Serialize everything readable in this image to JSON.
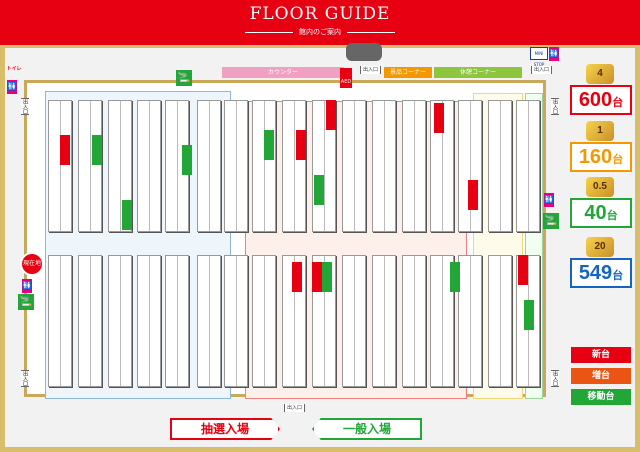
{
  "header": {
    "title": "FLOOR GUIDE",
    "subtitle": "館内のご案内"
  },
  "map": {
    "counter": "カウンター",
    "prize_corner": "景品コーナー",
    "rest_corner": "休憩コーナー",
    "entrance": "出入口",
    "current_location": "現在地",
    "aed": "AED",
    "ministop": "MINI STOP",
    "toilet_logo": "トイレ"
  },
  "counts": [
    {
      "rate": "4",
      "value": "600",
      "unit": "台",
      "color": "#e60012"
    },
    {
      "rate": "1",
      "value": "160",
      "unit": "台",
      "color": "#f39800"
    },
    {
      "rate": "0.5",
      "value": "40",
      "unit": "台",
      "color": "#22a638"
    },
    {
      "rate": "20",
      "value": "549",
      "unit": "台",
      "color": "#1565c0"
    }
  ],
  "legend": [
    {
      "label": "新台",
      "color": "#e60012"
    },
    {
      "label": "増台",
      "color": "#ea5514"
    },
    {
      "label": "移動台",
      "color": "#22a638"
    }
  ],
  "buttons": {
    "lottery": "抽選入場",
    "general": "一般入場"
  },
  "colors": {
    "accent": "#e60012",
    "gold": "#d8bd6a"
  }
}
